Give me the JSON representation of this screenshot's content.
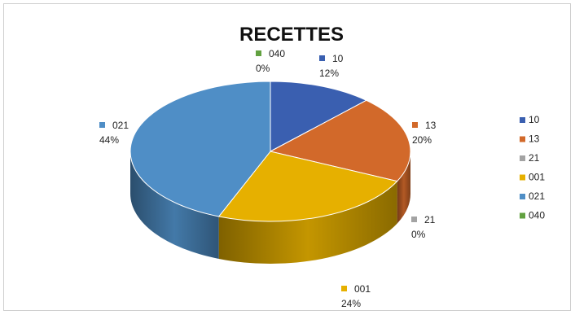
{
  "chart_data": {
    "type": "pie",
    "title": "RECETTES",
    "slices": [
      {
        "label": "10",
        "value": 12,
        "percent_label": "12%",
        "color": "#3a5fb0"
      },
      {
        "label": "13",
        "value": 20,
        "percent_label": "20%",
        "color": "#d2692a"
      },
      {
        "label": "21",
        "value": 0,
        "percent_label": "0%",
        "color": "#a3a3a3"
      },
      {
        "label": "001",
        "value": 24,
        "percent_label": "24%",
        "color": "#e6b000"
      },
      {
        "label": "021",
        "value": 44,
        "percent_label": "44%",
        "color": "#4f8ec6"
      },
      {
        "label": "040",
        "value": 0,
        "percent_label": "0%",
        "color": "#62a140"
      }
    ],
    "legend_position": "right",
    "style": "3d"
  }
}
